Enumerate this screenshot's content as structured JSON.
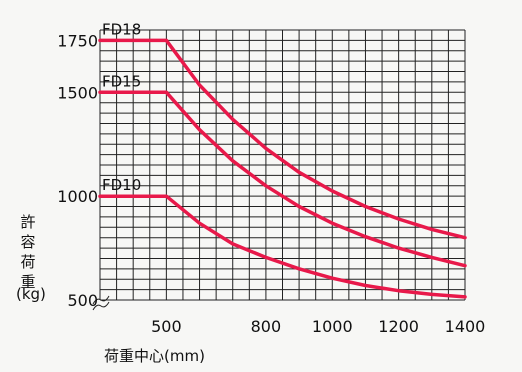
{
  "chart_data": {
    "type": "line",
    "title": "",
    "xlabel": "荷重中心(mm)",
    "ylabel_chars": [
      "許",
      "容",
      "荷",
      "重"
    ],
    "ylabel_unit": "(kg)",
    "xlim": [
      300,
      1400
    ],
    "ylim": [
      500,
      1800
    ],
    "x_ticks": [
      "500",
      "800",
      "1000",
      "1200",
      "1400"
    ],
    "y_ticks": [
      "1750",
      "1500",
      "1000",
      "500"
    ],
    "grid": true,
    "series": [
      {
        "name": "FD18",
        "color": "#e8194a",
        "x": [
          300,
          500,
          600,
          700,
          800,
          900,
          1000,
          1100,
          1200,
          1300,
          1400
        ],
        "y": [
          1750,
          1750,
          1535,
          1370,
          1230,
          1115,
          1025,
          950,
          890,
          840,
          800
        ]
      },
      {
        "name": "FD15",
        "color": "#e8194a",
        "x": [
          300,
          500,
          600,
          700,
          800,
          900,
          1000,
          1100,
          1200,
          1300,
          1400
        ],
        "y": [
          1500,
          1500,
          1320,
          1170,
          1050,
          950,
          870,
          805,
          750,
          705,
          665
        ]
      },
      {
        "name": "FD10",
        "color": "#e8194a",
        "x": [
          300,
          500,
          600,
          700,
          800,
          900,
          1000,
          1100,
          1200,
          1300,
          1400
        ],
        "y": [
          1000,
          1000,
          870,
          770,
          705,
          650,
          605,
          570,
          545,
          527,
          515
        ]
      }
    ]
  }
}
